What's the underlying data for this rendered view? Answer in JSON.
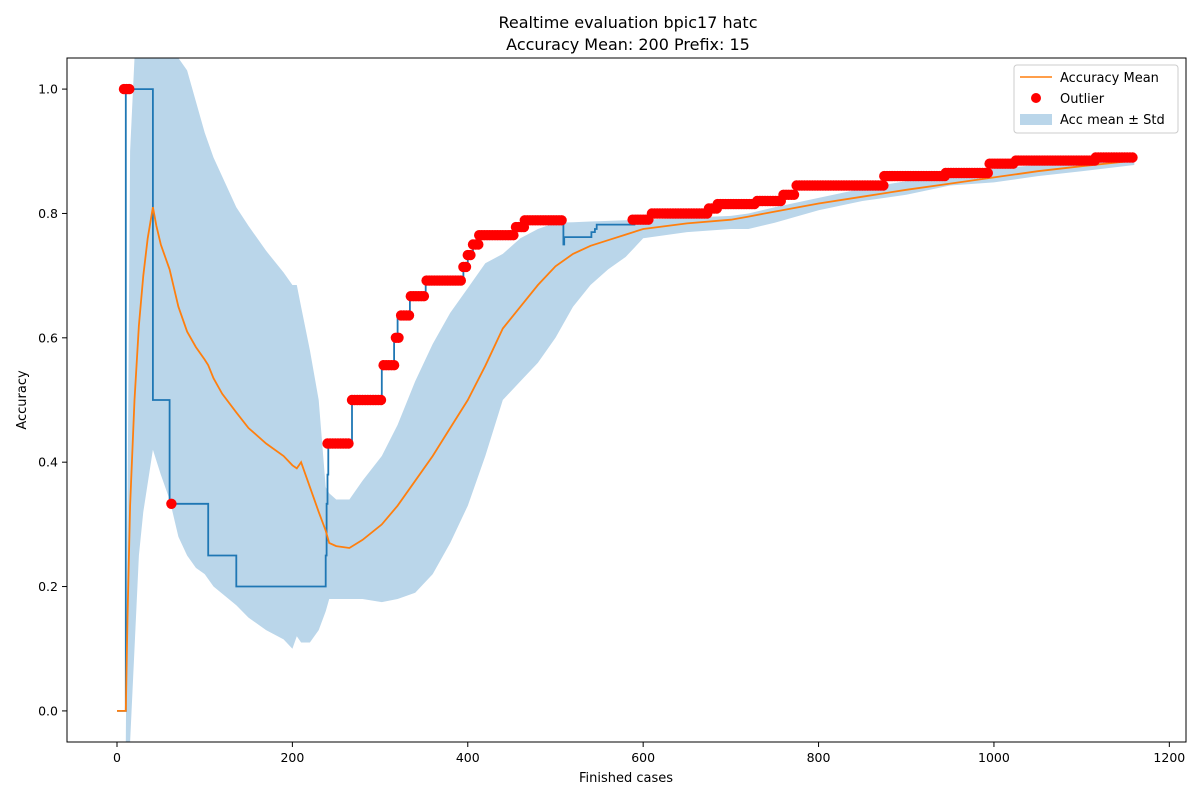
{
  "chart_data": {
    "type": "line",
    "title": "Realtime evaluation bpic17 hatc",
    "subtitle": "Accuracy Mean: 200 Prefix: 15",
    "xlabel": "Finished cases",
    "ylabel": "Accuracy",
    "xlim": [
      -57,
      1219
    ],
    "ylim": [
      -0.05,
      1.05
    ],
    "xticks": [
      0,
      200,
      400,
      600,
      800,
      1000,
      1200
    ],
    "yticks": [
      0.0,
      0.2,
      0.4,
      0.6,
      0.8,
      1.0
    ],
    "xtick_labels": [
      "0",
      "200",
      "400",
      "600",
      "800",
      "1000",
      "1200"
    ],
    "ytick_labels": [
      "0.0",
      "0.2",
      "0.4",
      "0.6",
      "0.8",
      "1.0"
    ],
    "grid": false,
    "legend_position": "top-right",
    "colors": {
      "accuracy": "#1f77b4",
      "mean": "#ff7f0e",
      "outlier": "#ff0000",
      "band": "#bad6ea"
    },
    "legend": [
      {
        "label": "Accuracy Mean",
        "kind": "line"
      },
      {
        "label": "Outlier",
        "kind": "marker"
      },
      {
        "label": "Acc mean ± Std",
        "kind": "band"
      }
    ],
    "accuracy_line": {
      "x": [
        0,
        10,
        10,
        41,
        41,
        60,
        60,
        104,
        104,
        136,
        136,
        238,
        238,
        239,
        239,
        240,
        240,
        241,
        241,
        242,
        242,
        268,
        268,
        276,
        276,
        302,
        302,
        316,
        316,
        320,
        320,
        325,
        325,
        334,
        334,
        352,
        352,
        386,
        386,
        395,
        395,
        400,
        400,
        406,
        406,
        413,
        413,
        455,
        455,
        465,
        465,
        509,
        509,
        510,
        510,
        511,
        511,
        541,
        541,
        545,
        545,
        547,
        547,
        590,
        590,
        610,
        610,
        675,
        675,
        685,
        685,
        730,
        730,
        760,
        760,
        775,
        775,
        875,
        875,
        945,
        945,
        995,
        995,
        1025,
        1025,
        1160
      ],
      "y": [
        0,
        0,
        1.0,
        1.0,
        0.5,
        0.5,
        0.333,
        0.333,
        0.25,
        0.25,
        0.2,
        0.2,
        0.25,
        0.25,
        0.333,
        0.333,
        0.38,
        0.38,
        0.43,
        0.43,
        0.43,
        0.43,
        0.5,
        0.5,
        0.5,
        0.5,
        0.556,
        0.556,
        0.6,
        0.6,
        0.636,
        0.636,
        0.636,
        0.636,
        0.667,
        0.667,
        0.692,
        0.692,
        0.692,
        0.692,
        0.714,
        0.714,
        0.733,
        0.733,
        0.75,
        0.75,
        0.765,
        0.765,
        0.778,
        0.778,
        0.789,
        0.789,
        0.75,
        0.75,
        0.762,
        0.762,
        0.762,
        0.762,
        0.77,
        0.77,
        0.775,
        0.775,
        0.782,
        0.782,
        0.79,
        0.79,
        0.8,
        0.8,
        0.808,
        0.808,
        0.815,
        0.815,
        0.82,
        0.82,
        0.83,
        0.83,
        0.845,
        0.845,
        0.86,
        0.86,
        0.865,
        0.865,
        0.88,
        0.88,
        0.885,
        0.885
      ]
    },
    "mean_line": {
      "x": [
        0,
        10,
        12,
        15,
        20,
        25,
        30,
        35,
        41,
        45,
        50,
        55,
        60,
        65,
        70,
        80,
        90,
        100,
        104,
        110,
        120,
        136,
        150,
        170,
        190,
        200,
        205,
        210,
        220,
        230,
        238,
        242,
        250,
        265,
        280,
        302,
        320,
        340,
        360,
        380,
        400,
        420,
        440,
        460,
        480,
        500,
        520,
        540,
        560,
        580,
        600,
        650,
        700,
        720,
        750,
        800,
        850,
        900,
        950,
        1000,
        1050,
        1100,
        1160
      ],
      "y": [
        0,
        0,
        0.15,
        0.33,
        0.5,
        0.62,
        0.7,
        0.76,
        0.81,
        0.78,
        0.75,
        0.73,
        0.71,
        0.68,
        0.65,
        0.61,
        0.585,
        0.565,
        0.556,
        0.535,
        0.51,
        0.48,
        0.455,
        0.43,
        0.41,
        0.395,
        0.39,
        0.4,
        0.36,
        0.32,
        0.29,
        0.27,
        0.265,
        0.262,
        0.275,
        0.3,
        0.33,
        0.37,
        0.41,
        0.455,
        0.5,
        0.555,
        0.615,
        0.65,
        0.685,
        0.715,
        0.735,
        0.748,
        0.757,
        0.766,
        0.775,
        0.784,
        0.79,
        0.795,
        0.803,
        0.816,
        0.827,
        0.838,
        0.848,
        0.858,
        0.868,
        0.876,
        0.885
      ]
    },
    "band": {
      "x": [
        10,
        15,
        20,
        25,
        30,
        41,
        50,
        60,
        70,
        80,
        90,
        100,
        110,
        136,
        150,
        170,
        190,
        200,
        205,
        210,
        220,
        230,
        238,
        242,
        250,
        265,
        280,
        302,
        320,
        340,
        360,
        380,
        400,
        420,
        440,
        460,
        480,
        500,
        520,
        540,
        560,
        580,
        600,
        650,
        700,
        720,
        750,
        800,
        850,
        900,
        950,
        1000,
        1050,
        1100,
        1160
      ],
      "upper": [
        -0.05,
        0.9,
        1.1,
        1.15,
        1.15,
        1.15,
        1.15,
        1.15,
        1.09,
        1.03,
        0.98,
        0.93,
        0.89,
        0.81,
        0.78,
        0.74,
        0.705,
        0.685,
        0.685,
        0.65,
        0.58,
        0.5,
        0.36,
        0.35,
        0.34,
        0.34,
        0.37,
        0.41,
        0.46,
        0.53,
        0.59,
        0.64,
        0.68,
        0.72,
        0.735,
        0.76,
        0.775,
        0.785,
        0.786,
        0.787,
        0.788,
        0.789,
        0.79,
        0.793,
        0.796,
        0.8,
        0.81,
        0.825,
        0.84,
        0.852,
        0.865,
        0.872,
        0.878,
        0.883,
        0.888
      ],
      "lower": [
        -0.05,
        -0.05,
        0.1,
        0.25,
        0.32,
        0.42,
        0.38,
        0.34,
        0.28,
        0.25,
        0.23,
        0.22,
        0.2,
        0.17,
        0.15,
        0.13,
        0.115,
        0.1,
        0.12,
        0.11,
        0.11,
        0.13,
        0.16,
        0.18,
        0.18,
        0.18,
        0.18,
        0.175,
        0.18,
        0.19,
        0.22,
        0.27,
        0.33,
        0.41,
        0.5,
        0.53,
        0.56,
        0.6,
        0.65,
        0.685,
        0.71,
        0.73,
        0.76,
        0.77,
        0.775,
        0.775,
        0.785,
        0.805,
        0.82,
        0.83,
        0.845,
        0.85,
        0.86,
        0.868,
        0.878
      ]
    },
    "outliers": {
      "segments": [
        {
          "x_from": 8,
          "x_to": 15,
          "y": 1.0
        },
        {
          "x_from": 62,
          "x_to": 64,
          "y": 0.333
        },
        {
          "x_from": 240,
          "x_to": 266,
          "y": 0.43
        },
        {
          "x_from": 268,
          "x_to": 302,
          "y": 0.5
        },
        {
          "x_from": 304,
          "x_to": 316,
          "y": 0.556
        },
        {
          "x_from": 318,
          "x_to": 322,
          "y": 0.6
        },
        {
          "x_from": 324,
          "x_to": 334,
          "y": 0.636
        },
        {
          "x_from": 335,
          "x_to": 352,
          "y": 0.667
        },
        {
          "x_from": 353,
          "x_to": 394,
          "y": 0.692
        },
        {
          "x_from": 395,
          "x_to": 399,
          "y": 0.714
        },
        {
          "x_from": 400,
          "x_to": 405,
          "y": 0.733
        },
        {
          "x_from": 406,
          "x_to": 412,
          "y": 0.75
        },
        {
          "x_from": 413,
          "x_to": 454,
          "y": 0.765
        },
        {
          "x_from": 455,
          "x_to": 464,
          "y": 0.778
        },
        {
          "x_from": 465,
          "x_to": 508,
          "y": 0.789
        },
        {
          "x_from": 588,
          "x_to": 608,
          "y": 0.79
        },
        {
          "x_from": 610,
          "x_to": 674,
          "y": 0.8
        },
        {
          "x_from": 675,
          "x_to": 684,
          "y": 0.808
        },
        {
          "x_from": 685,
          "x_to": 729,
          "y": 0.815
        },
        {
          "x_from": 730,
          "x_to": 759,
          "y": 0.82
        },
        {
          "x_from": 760,
          "x_to": 774,
          "y": 0.83
        },
        {
          "x_from": 775,
          "x_to": 874,
          "y": 0.845
        },
        {
          "x_from": 875,
          "x_to": 944,
          "y": 0.86
        },
        {
          "x_from": 945,
          "x_to": 994,
          "y": 0.865
        },
        {
          "x_from": 995,
          "x_to": 1024,
          "y": 0.88
        },
        {
          "x_from": 1025,
          "x_to": 1115,
          "y": 0.885
        },
        {
          "x_from": 1116,
          "x_to": 1160,
          "y": 0.89
        }
      ],
      "spacing": 3
    }
  }
}
